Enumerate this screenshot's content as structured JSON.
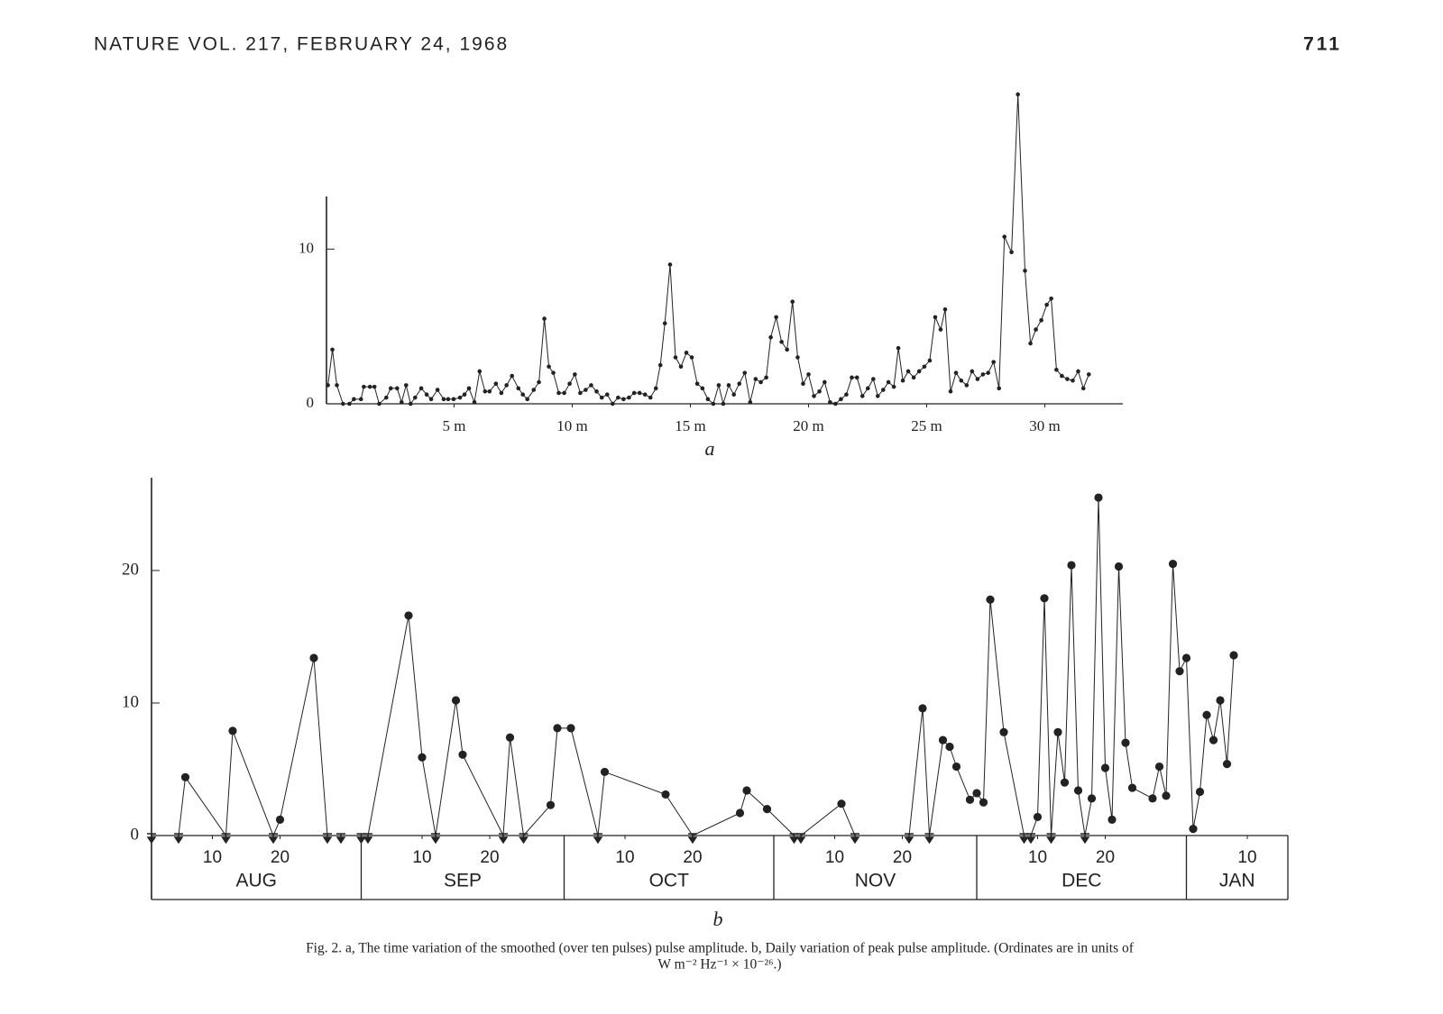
{
  "header": {
    "journal": "NATURE VOL. 217, FEBRUARY 24, 1968",
    "page": "711"
  },
  "chart_data": [
    {
      "type": "line",
      "panel": "a",
      "color": "#222222",
      "x": [
        -0.34,
        -0.15,
        0.04,
        0.3,
        0.57,
        0.76,
        1.06,
        1.18,
        1.44,
        1.63,
        1.83,
        2.13,
        2.32,
        2.59,
        2.78,
        2.97,
        3.16,
        3.35,
        3.61,
        3.84,
        4.03,
        4.3,
        4.56,
        4.75,
        4.98,
        5.25,
        5.44,
        5.63,
        5.86,
        6.08,
        6.31,
        6.5,
        6.77,
        7.0,
        7.22,
        7.45,
        7.72,
        7.91,
        8.1,
        8.37,
        8.59,
        8.82,
        9.01,
        9.2,
        9.43,
        9.66,
        9.89,
        10.11,
        10.34,
        10.57,
        10.8,
        11.03,
        11.25,
        11.48,
        11.71,
        11.94,
        12.17,
        12.4,
        12.62,
        12.85,
        13.08,
        13.31,
        13.54,
        13.73,
        13.92,
        14.14,
        14.37,
        14.6,
        14.83,
        15.06,
        15.29,
        15.51,
        15.74,
        15.97,
        16.2,
        16.39,
        16.62,
        16.84,
        17.07,
        17.3,
        17.53,
        17.76,
        17.98,
        18.21,
        18.4,
        18.63,
        18.86,
        19.09,
        19.32,
        19.54,
        19.77,
        20.0,
        20.23,
        20.46,
        20.68,
        20.91,
        21.14,
        21.37,
        21.6,
        21.83,
        22.05,
        22.28,
        22.51,
        22.74,
        22.93,
        23.16,
        23.38,
        23.61,
        23.8,
        23.99,
        24.22,
        24.45,
        24.68,
        24.9,
        25.13,
        25.36,
        25.59,
        25.78,
        26.01,
        26.24,
        26.46,
        26.69,
        26.92,
        27.15,
        27.38,
        27.6,
        27.83,
        28.06,
        28.29,
        28.59,
        28.86,
        29.16,
        29.39,
        29.62,
        29.85,
        30.08,
        30.27,
        30.49,
        30.72,
        30.95,
        31.18,
        31.41,
        31.63,
        31.86
      ],
      "values": [
        1.2,
        3.5,
        1.2,
        0,
        0,
        0.3,
        0.3,
        1.1,
        1.1,
        1.1,
        0,
        0.4,
        1.0,
        1.0,
        0.1,
        1.2,
        0,
        0.4,
        1.0,
        0.6,
        0.3,
        0.9,
        0.3,
        0.3,
        0.3,
        0.4,
        0.6,
        1.0,
        0.1,
        2.1,
        0.8,
        0.8,
        1.3,
        0.7,
        1.2,
        1.8,
        1.0,
        0.6,
        0.3,
        0.9,
        1.4,
        5.5,
        2.4,
        2.0,
        0.7,
        0.7,
        1.3,
        1.9,
        0.7,
        0.9,
        1.2,
        0.8,
        0.4,
        0.6,
        0,
        0.4,
        0.3,
        0.4,
        0.7,
        0.7,
        0.6,
        0.4,
        1.0,
        2.5,
        5.2,
        9.0,
        3.0,
        2.4,
        3.3,
        3.0,
        1.3,
        1.0,
        0.3,
        0,
        1.2,
        0,
        1.2,
        0.6,
        1.3,
        2.0,
        0.1,
        1.6,
        1.4,
        1.7,
        4.3,
        5.6,
        4.0,
        3.5,
        6.6,
        3.0,
        1.3,
        1.9,
        0.5,
        0.8,
        1.4,
        0.1,
        0,
        0.3,
        0.6,
        1.7,
        1.7,
        0.5,
        1.0,
        1.6,
        0.5,
        0.9,
        1.4,
        1.1,
        3.6,
        1.5,
        2.1,
        1.7,
        2.1,
        2.4,
        2.8,
        5.6,
        4.8,
        6.1,
        0.8,
        2.0,
        1.5,
        1.2,
        2.1,
        1.6,
        1.9,
        2.0,
        2.7,
        1.0,
        10.8,
        9.8,
        20.0,
        8.6,
        3.9,
        4.8,
        5.4,
        6.4,
        6.8,
        2.2,
        1.8,
        1.6,
        1.5,
        2.1,
        1.0,
        1.9
      ],
      "xlim": [
        -0.4,
        33.3
      ],
      "ylim": [
        0,
        13.4
      ],
      "xticks": [
        {
          "value": 5,
          "label": "5 m"
        },
        {
          "value": 10,
          "label": "10 m"
        },
        {
          "value": 15,
          "label": "15 m"
        },
        {
          "value": 20,
          "label": "20 m"
        },
        {
          "value": 25,
          "label": "25 m"
        },
        {
          "value": 30,
          "label": "30 m"
        }
      ],
      "yticks": [
        0,
        10
      ]
    },
    {
      "type": "line",
      "panel": "b",
      "color": "#222222",
      "x": [
        "08-01",
        "08-05",
        "08-06",
        "08-12",
        "08-13",
        "08-19",
        "08-20",
        "08-25",
        "08-27",
        "08-29",
        "09-01",
        "09-02",
        "09-08",
        "09-10",
        "09-12",
        "09-15",
        "09-16",
        "09-22",
        "09-23",
        "09-25",
        "09-29",
        "09-30",
        "10-02",
        "10-06",
        "10-07",
        "10-16",
        "10-20",
        "10-27",
        "10-28",
        "10-31",
        "11-04",
        "11-05",
        "11-11",
        "11-13",
        "11-21",
        "11-23",
        "11-24",
        "11-26",
        "11-27",
        "11-28",
        "11-30",
        "12-01",
        "12-02",
        "12-03",
        "12-05",
        "12-08",
        "12-09",
        "12-10",
        "12-11",
        "12-12",
        "12-13",
        "12-14",
        "12-15",
        "12-16",
        "12-17",
        "12-18",
        "12-19",
        "12-20",
        "12-21",
        "12-22",
        "12-23",
        "12-24",
        "12-27",
        "12-28",
        "12-29",
        "12-30",
        "12-31",
        "01-01",
        "01-02",
        "01-03",
        "01-04",
        "01-05",
        "01-06",
        "01-07",
        "01-08"
      ],
      "values": [
        0,
        0,
        4.4,
        0,
        7.9,
        0,
        1.2,
        13.4,
        0,
        0,
        0,
        0,
        16.6,
        5.9,
        0,
        10.2,
        6.1,
        0,
        7.4,
        0,
        2.3,
        8.1,
        8.1,
        0,
        4.8,
        3.1,
        0,
        1.7,
        3.4,
        2.0,
        0,
        0,
        2.4,
        0,
        0,
        9.6,
        0,
        7.2,
        6.7,
        5.2,
        2.7,
        3.2,
        2.5,
        17.8,
        7.8,
        0,
        0,
        1.4,
        17.9,
        0,
        7.8,
        4.0,
        20.4,
        3.4,
        0,
        2.8,
        25.5,
        5.1,
        1.2,
        20.3,
        7.0,
        3.6,
        2.8,
        5.2,
        3.0,
        20.5,
        12.4,
        13.4,
        0.5,
        3.3,
        9.1,
        7.2,
        10.2,
        5.4,
        13.6
      ],
      "xlim": [
        "08-01",
        "01-16"
      ],
      "ylim": [
        0,
        27
      ],
      "xticks": [
        {
          "value": "08-10",
          "label": "10"
        },
        {
          "value": "08-20",
          "label": "20"
        },
        {
          "value": "09-10",
          "label": "10"
        },
        {
          "value": "09-20",
          "label": "20"
        },
        {
          "value": "10-10",
          "label": "10"
        },
        {
          "value": "10-20",
          "label": "20"
        },
        {
          "value": "11-10",
          "label": "10"
        },
        {
          "value": "11-20",
          "label": "20"
        },
        {
          "value": "12-10",
          "label": "10"
        },
        {
          "value": "12-20",
          "label": "20"
        },
        {
          "value": "01-10",
          "label": "10"
        }
      ],
      "months": [
        "AUG",
        "SEP",
        "OCT",
        "NOV",
        "DEC",
        "JAN"
      ],
      "yticks": [
        0,
        10,
        20
      ]
    }
  ],
  "caption": [
    "Fig. 2.  a, The time variation of the smoothed (over ten pulses) pulse amplitude.   b, Daily variation of peak pulse amplitude. (Ordinates are in units of",
    "W m⁻² Hz⁻¹ × 10⁻²⁶.)"
  ]
}
